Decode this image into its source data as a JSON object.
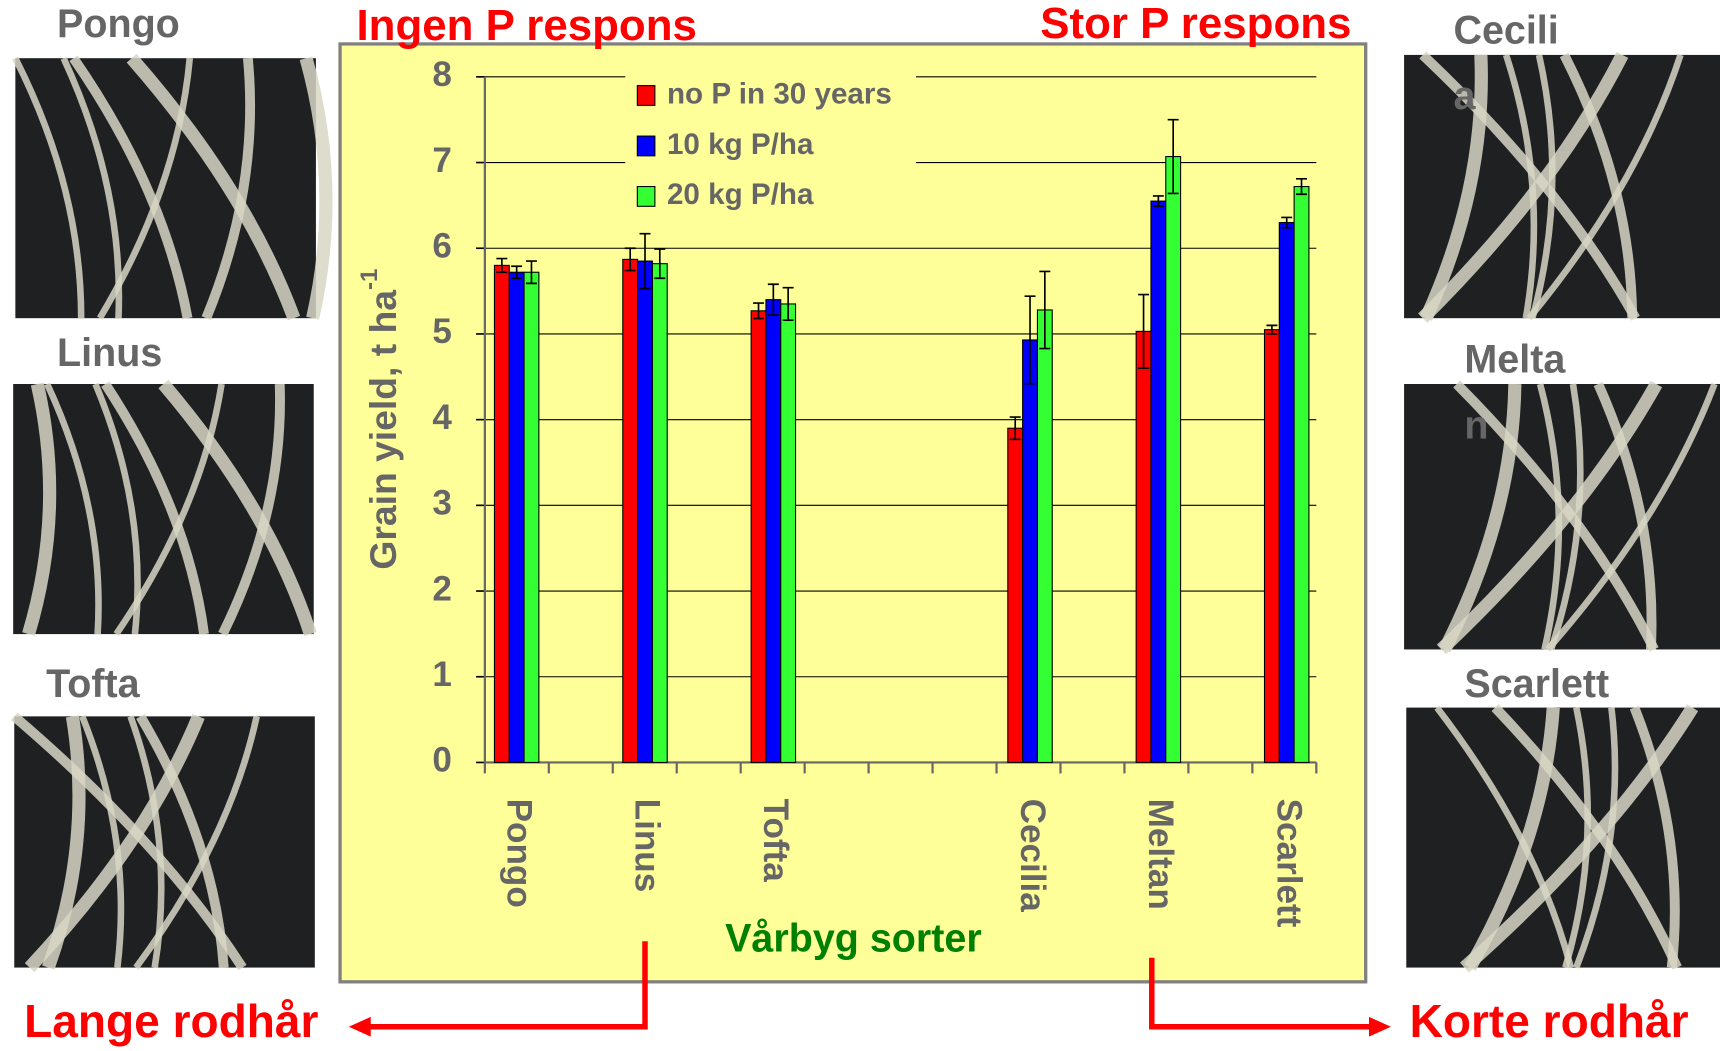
{
  "chart_data": {
    "type": "bar",
    "title_left": "Ingen P respons",
    "title_right": "Stor P respons",
    "y_label": "Grain yield, t ha",
    "y_label_superscript": "-1",
    "x_label": "Vårbyg sorter",
    "categories": [
      "Pongo",
      "Linus",
      "Tofta",
      null,
      "Cecilia",
      "Meltan",
      "Scarlett"
    ],
    "series": [
      {
        "name": "no P in 30 years",
        "color": "#ff0000",
        "values": [
          5.8,
          5.87,
          5.27,
          null,
          3.9,
          5.03,
          5.05
        ],
        "errors": [
          0.08,
          0.13,
          0.09,
          null,
          0.13,
          0.43,
          0.05
        ]
      },
      {
        "name": "10 kg P/ha",
        "color": "#0000ff",
        "values": [
          5.72,
          5.85,
          5.4,
          null,
          4.93,
          6.55,
          6.3
        ],
        "errors": [
          0.07,
          0.32,
          0.18,
          null,
          0.51,
          0.06,
          0.06
        ]
      },
      {
        "name": "20 kg P/ha",
        "color": "#33ff33",
        "values": [
          5.72,
          5.82,
          5.35,
          null,
          5.28,
          7.07,
          6.72
        ],
        "errors": [
          0.13,
          0.17,
          0.19,
          null,
          0.45,
          0.43,
          0.09
        ]
      }
    ],
    "ylim": [
      0,
      8
    ],
    "yticks": [
      0,
      1,
      2,
      3,
      4,
      5,
      6,
      7,
      8
    ],
    "grid": true
  },
  "photos": [
    {
      "lines": [
        "Pongo"
      ]
    },
    {
      "lines": [
        "Linus"
      ]
    },
    {
      "lines": [
        "Tofta"
      ]
    },
    {
      "lines": [
        "Cecili",
        "a"
      ]
    },
    {
      "lines": [
        "Melta",
        "n"
      ]
    },
    {
      "lines": [
        "Scarlett"
      ]
    }
  ],
  "bottom_left": "Lange rodhår",
  "bottom_right": "Korte rodhår"
}
